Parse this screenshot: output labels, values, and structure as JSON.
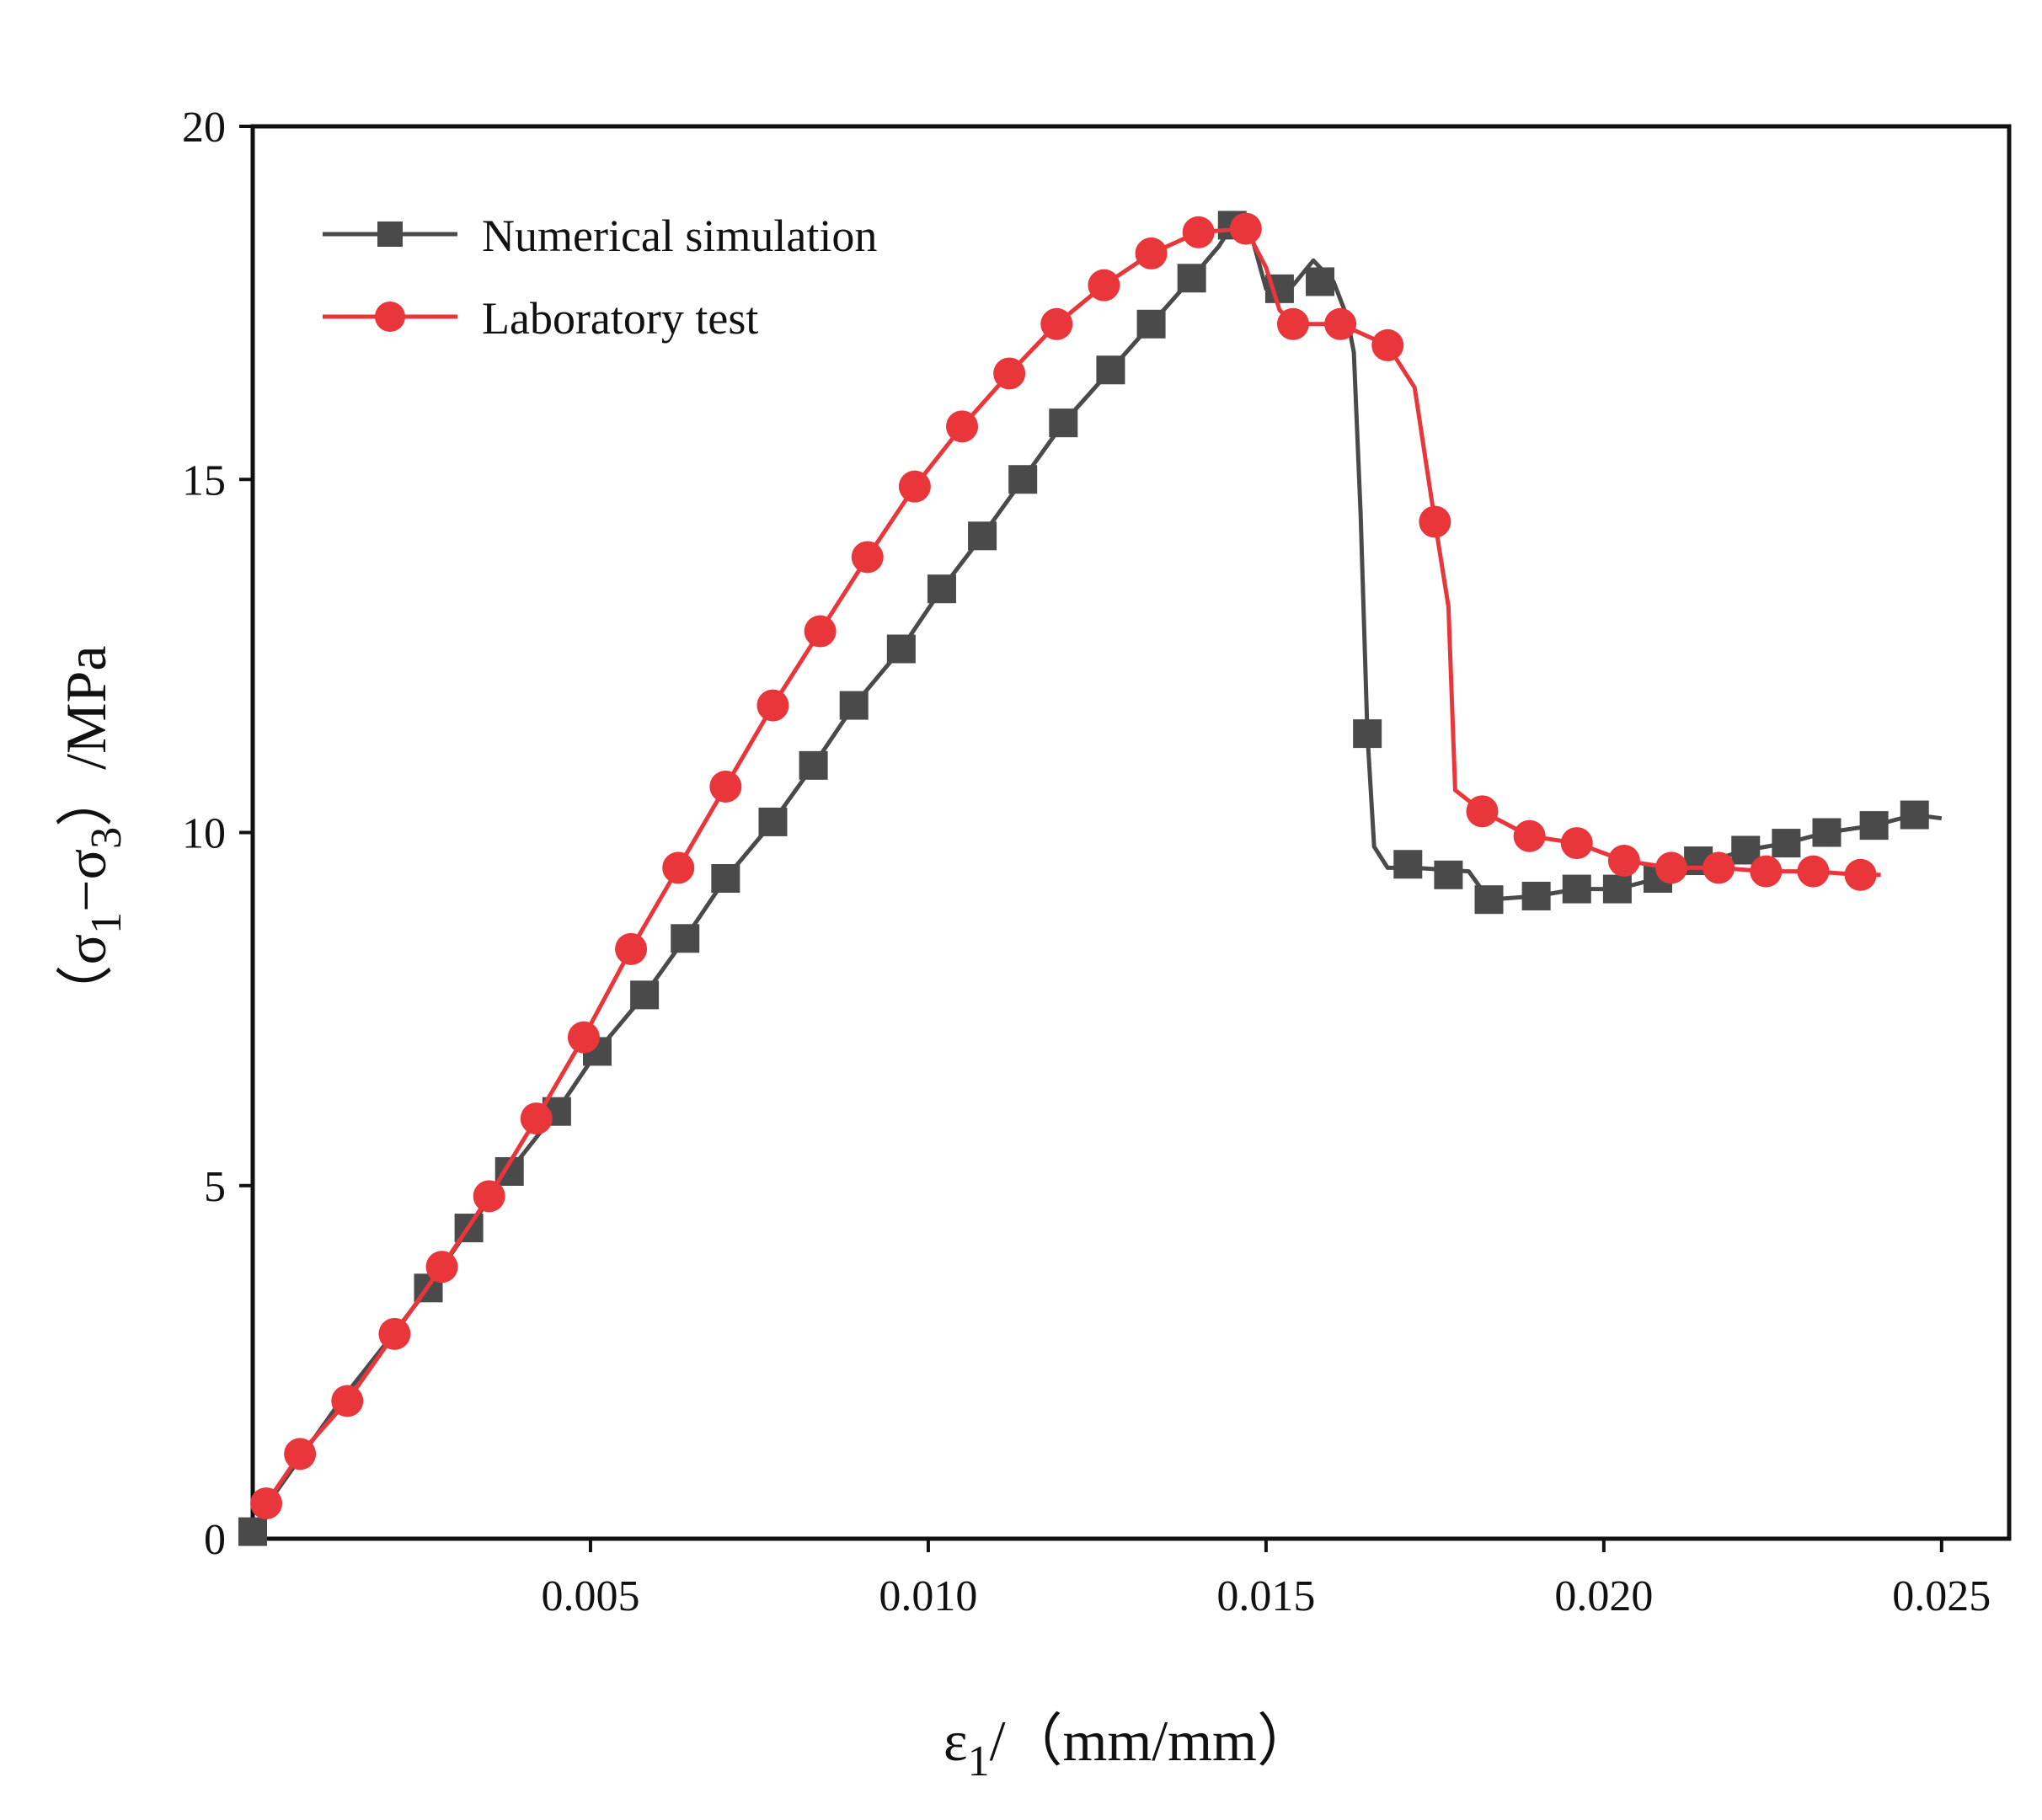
{
  "chart_data": {
    "type": "line",
    "title": "",
    "xlabel_parts": {
      "symbol": "ε",
      "sub": "1",
      "rest": "/（mm/mm）"
    },
    "ylabel_parts": {
      "open": "（",
      "s1": "σ",
      "sub1": "1",
      "dash": "−",
      "s3": "σ",
      "sub3": "3",
      "close": "）/MPa"
    },
    "xlim": [
      0.0,
      0.026
    ],
    "ylim": [
      0,
      20
    ],
    "x_ticks": [
      0.005,
      0.01,
      0.015,
      0.02,
      0.025
    ],
    "x_tick_labels": [
      "0.005",
      "0.010",
      "0.015",
      "0.020",
      "0.025"
    ],
    "y_ticks": [
      0,
      5,
      10,
      15,
      20
    ],
    "y_tick_labels": [
      "0",
      "5",
      "10",
      "15",
      "20"
    ],
    "legend_position": "top-left",
    "series": [
      {
        "name": "Numerical simulation",
        "color": "#4a4a4a",
        "marker": "square",
        "line": [
          [
            0.0,
            0.05
          ],
          [
            0.0003,
            0.6
          ],
          [
            0.0013,
            1.95
          ],
          [
            0.002,
            2.8
          ],
          [
            0.0026,
            3.55
          ],
          [
            0.0032,
            4.4
          ],
          [
            0.0038,
            5.2
          ],
          [
            0.0045,
            6.05
          ],
          [
            0.0051,
            6.9
          ],
          [
            0.0058,
            7.7
          ],
          [
            0.0064,
            8.5
          ],
          [
            0.007,
            9.35
          ],
          [
            0.0077,
            10.15
          ],
          [
            0.0083,
            10.95
          ],
          [
            0.0089,
            11.8
          ],
          [
            0.0096,
            12.6
          ],
          [
            0.0102,
            13.45
          ],
          [
            0.0108,
            14.2
          ],
          [
            0.0114,
            15.0
          ],
          [
            0.012,
            15.8
          ],
          [
            0.0127,
            16.55
          ],
          [
            0.0133,
            17.2
          ],
          [
            0.0139,
            17.85
          ],
          [
            0.0143,
            18.3
          ],
          [
            0.0145,
            18.6
          ],
          [
            0.0148,
            18.4
          ],
          [
            0.015,
            17.7
          ],
          [
            0.0154,
            17.75
          ],
          [
            0.0157,
            18.1
          ],
          [
            0.016,
            17.8
          ],
          [
            0.0162,
            17.3
          ],
          [
            0.0163,
            16.8
          ],
          [
            0.0164,
            14.5
          ],
          [
            0.0165,
            11.4
          ],
          [
            0.0166,
            9.8
          ],
          [
            0.0168,
            9.5
          ],
          [
            0.0172,
            9.5
          ],
          [
            0.018,
            9.45
          ],
          [
            0.0183,
            9.05
          ],
          [
            0.019,
            9.1
          ],
          [
            0.0196,
            9.2
          ],
          [
            0.0202,
            9.2
          ],
          [
            0.0208,
            9.35
          ],
          [
            0.0214,
            9.55
          ],
          [
            0.0221,
            9.75
          ],
          [
            0.0227,
            9.85
          ],
          [
            0.0233,
            10.0
          ],
          [
            0.024,
            10.1
          ],
          [
            0.0246,
            10.25
          ],
          [
            0.025,
            10.2
          ]
        ],
        "markers": [
          [
            0.0,
            0.1
          ],
          [
            0.0026,
            3.55
          ],
          [
            0.0032,
            4.4
          ],
          [
            0.0038,
            5.2
          ],
          [
            0.0045,
            6.05
          ],
          [
            0.0051,
            6.9
          ],
          [
            0.0058,
            7.7
          ],
          [
            0.0064,
            8.5
          ],
          [
            0.007,
            9.35
          ],
          [
            0.0077,
            10.15
          ],
          [
            0.0083,
            10.95
          ],
          [
            0.0089,
            11.8
          ],
          [
            0.0096,
            12.6
          ],
          [
            0.0102,
            13.45
          ],
          [
            0.0108,
            14.2
          ],
          [
            0.0114,
            15.0
          ],
          [
            0.012,
            15.8
          ],
          [
            0.0127,
            16.55
          ],
          [
            0.0133,
            17.2
          ],
          [
            0.0139,
            17.85
          ],
          [
            0.0145,
            18.6
          ],
          [
            0.0152,
            17.7
          ],
          [
            0.0158,
            17.8
          ],
          [
            0.0165,
            11.4
          ],
          [
            0.0171,
            9.55
          ],
          [
            0.0177,
            9.4
          ],
          [
            0.0183,
            9.05
          ],
          [
            0.019,
            9.1
          ],
          [
            0.0196,
            9.2
          ],
          [
            0.0202,
            9.2
          ],
          [
            0.0208,
            9.35
          ],
          [
            0.0214,
            9.6
          ],
          [
            0.0221,
            9.75
          ],
          [
            0.0227,
            9.85
          ],
          [
            0.0233,
            10.0
          ],
          [
            0.024,
            10.1
          ],
          [
            0.0246,
            10.25
          ]
        ]
      },
      {
        "name": "Laboratory test",
        "color": "#e8363b",
        "marker": "circle",
        "line": [
          [
            0.0002,
            0.5
          ],
          [
            0.0007,
            1.2
          ],
          [
            0.0014,
            1.95
          ],
          [
            0.0021,
            2.9
          ],
          [
            0.0028,
            3.85
          ],
          [
            0.0035,
            4.85
          ],
          [
            0.0042,
            5.95
          ],
          [
            0.0049,
            7.1
          ],
          [
            0.0056,
            8.35
          ],
          [
            0.0063,
            9.5
          ],
          [
            0.007,
            10.65
          ],
          [
            0.0077,
            11.8
          ],
          [
            0.0084,
            12.85
          ],
          [
            0.0091,
            13.9
          ],
          [
            0.0098,
            14.9
          ],
          [
            0.0105,
            15.75
          ],
          [
            0.0112,
            16.5
          ],
          [
            0.0119,
            17.2
          ],
          [
            0.0126,
            17.75
          ],
          [
            0.0133,
            18.2
          ],
          [
            0.014,
            18.5
          ],
          [
            0.0147,
            18.55
          ],
          [
            0.015,
            18.0
          ],
          [
            0.0152,
            17.4
          ],
          [
            0.0154,
            17.2
          ],
          [
            0.0161,
            17.2
          ],
          [
            0.0168,
            16.9
          ],
          [
            0.0172,
            16.3
          ],
          [
            0.0175,
            14.4
          ],
          [
            0.0177,
            13.2
          ],
          [
            0.0178,
            10.6
          ],
          [
            0.0182,
            10.3
          ],
          [
            0.0189,
            9.95
          ],
          [
            0.0196,
            9.85
          ],
          [
            0.0203,
            9.6
          ],
          [
            0.021,
            9.5
          ],
          [
            0.0217,
            9.5
          ],
          [
            0.0224,
            9.45
          ],
          [
            0.0231,
            9.45
          ],
          [
            0.0238,
            9.4
          ],
          [
            0.0241,
            9.4
          ]
        ],
        "markers": [
          [
            0.0002,
            0.5
          ],
          [
            0.0007,
            1.2
          ],
          [
            0.0014,
            1.95
          ],
          [
            0.0021,
            2.9
          ],
          [
            0.0028,
            3.85
          ],
          [
            0.0035,
            4.85
          ],
          [
            0.0042,
            5.95
          ],
          [
            0.0049,
            7.1
          ],
          [
            0.0056,
            8.35
          ],
          [
            0.0063,
            9.5
          ],
          [
            0.007,
            10.65
          ],
          [
            0.0077,
            11.8
          ],
          [
            0.0084,
            12.85
          ],
          [
            0.0091,
            13.9
          ],
          [
            0.0098,
            14.9
          ],
          [
            0.0105,
            15.75
          ],
          [
            0.0112,
            16.5
          ],
          [
            0.0119,
            17.2
          ],
          [
            0.0126,
            17.75
          ],
          [
            0.0133,
            18.2
          ],
          [
            0.014,
            18.5
          ],
          [
            0.0147,
            18.55
          ],
          [
            0.0154,
            17.2
          ],
          [
            0.0161,
            17.2
          ],
          [
            0.0168,
            16.9
          ],
          [
            0.0175,
            14.4
          ],
          [
            0.0182,
            10.3
          ],
          [
            0.0189,
            9.95
          ],
          [
            0.0196,
            9.85
          ],
          [
            0.0203,
            9.6
          ],
          [
            0.021,
            9.5
          ],
          [
            0.0217,
            9.5
          ],
          [
            0.0224,
            9.45
          ],
          [
            0.0231,
            9.45
          ],
          [
            0.0238,
            9.4
          ]
        ]
      }
    ]
  }
}
